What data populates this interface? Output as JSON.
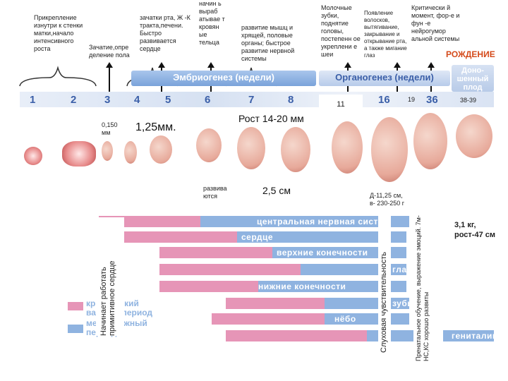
{
  "top_notes": {
    "attachment": "Прикрепление изнутри к стенки матки,начало интенсивного роста",
    "conception": "Зачатие,опре деление пола",
    "mouth": "зачатки рта, Ж -К тракта,печени. Быстро развивается сердце",
    "col4": "начин ь выраб атывае т кровян ые тельца",
    "muscles": "развитие мышц и хрящей, половые органы; быстрое развитие нервной системы",
    "teeth": "Молочные зубки, поднятие головы, постепенн ое укреплени е шеи",
    "hair": "Появление волосков, вытягивание, закрывание и открывание рта, а также мигание глаз",
    "critical": "Критически й момент, фор-е и фун -е нейрогумор альной системы",
    "birth": "РОЖДЕНИЕ"
  },
  "headers": {
    "embryo": "Эмбриогенез (недели)",
    "organo": "Органогенез (недели)",
    "newborn": "Доно- шенный плод"
  },
  "weeks": [
    "1",
    "2",
    "3",
    "4",
    "5",
    "6",
    "7",
    "8",
    "11",
    "16",
    "19",
    "36",
    "38-39"
  ],
  "mid_notes": {
    "size015": "0,150 мм",
    "size125": "1,25мм.",
    "growth": "Рост 14-20 мм",
    "develops": "развива ются",
    "size25": "2,5 см",
    "d11": "Д-11,25 см, в- 230-250 г",
    "weight": "3,1 кг, рост-47 см"
  },
  "bars": {
    "cns": "центральная нервная систе",
    "heart": "сердце",
    "upper": "верхние конечности",
    "lower": "нижние конечности",
    "eyes": "глаза",
    "teeth": "зубы",
    "palate": "нёбо",
    "genitals": "гениталии"
  },
  "legend": {
    "critical": "критический важный период",
    "less": "менее важный период"
  },
  "vertical": {
    "heart": "Начинает работать примитивное сердце",
    "hearing": "Слуховая чувствительность",
    "prenatal": "Пренатальное обучение, выражение эмоций. 7м-НС,КС хорошо развиты"
  }
}
